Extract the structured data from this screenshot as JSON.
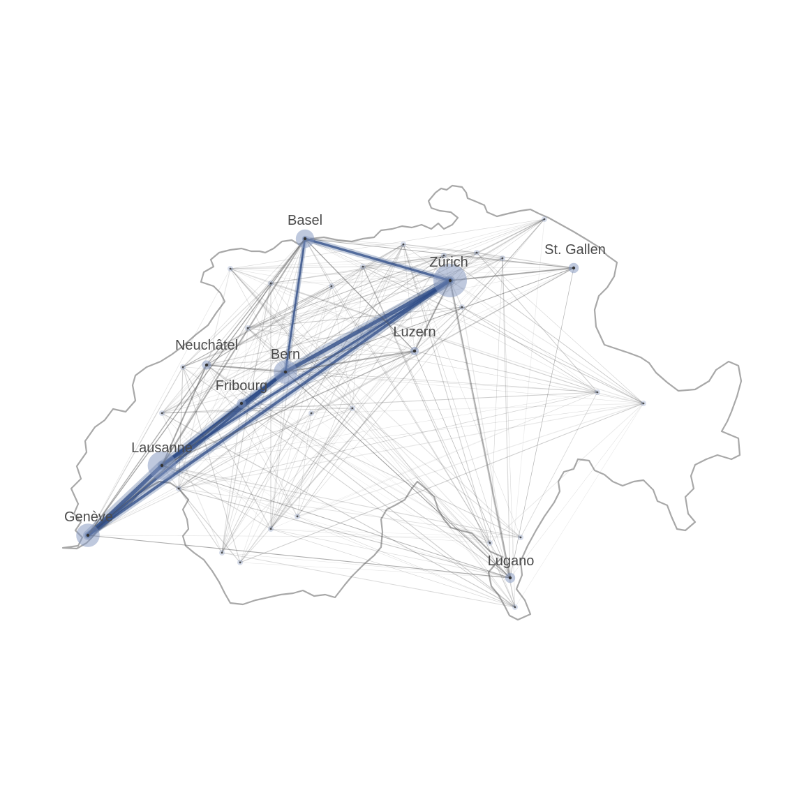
{
  "map": {
    "colors": {
      "background": "#ffffff",
      "border": "#a8a8a8",
      "edge_gray": "#555555",
      "edge_blue": "#2c4a86",
      "node_halo": "#7f93bd",
      "node_core": "#333333",
      "label": "#4a4a4a"
    }
  },
  "cities": [
    {
      "id": "basel",
      "label": "Basel",
      "size": 2.2
    },
    {
      "id": "zurich",
      "label": "Zürich",
      "size": 4.0
    },
    {
      "id": "st_gallen",
      "label": "St. Gallen",
      "size": 1.2
    },
    {
      "id": "luzern",
      "label": "Luzern",
      "size": 1.0
    },
    {
      "id": "neuchatel",
      "label": "Neuchâtel",
      "size": 1.1
    },
    {
      "id": "bern",
      "label": "Bern",
      "size": 2.8
    },
    {
      "id": "fribourg",
      "label": "Fribourg",
      "size": 1.1
    },
    {
      "id": "lausanne",
      "label": "Lausanne",
      "size": 3.4
    },
    {
      "id": "geneve",
      "label": "Genève",
      "size": 2.8
    },
    {
      "id": "lugano",
      "label": "Lugano",
      "size": 1.2
    }
  ],
  "minor_nodes": [
    "winterthur",
    "baden",
    "aarau",
    "olten",
    "solothurn",
    "biel",
    "zug",
    "schaffhausen",
    "la_chaux_de_fonds",
    "yverdon",
    "montreux",
    "sion",
    "martigny",
    "brig",
    "visp",
    "chur",
    "davos",
    "thun",
    "interlaken",
    "bellinzona",
    "locarno",
    "mendrisio",
    "delemont",
    "rapperswil",
    "frauenfeld"
  ],
  "flows": [
    {
      "from": "geneve",
      "to": "lausanne",
      "weight": 10,
      "blue": true
    },
    {
      "from": "lausanne",
      "to": "bern",
      "weight": 9,
      "blue": true
    },
    {
      "from": "bern",
      "to": "zurich",
      "weight": 10,
      "blue": true
    },
    {
      "from": "geneve",
      "to": "zurich",
      "weight": 7,
      "blue": true
    },
    {
      "from": "lausanne",
      "to": "zurich",
      "weight": 6,
      "blue": true
    },
    {
      "from": "basel",
      "to": "zurich",
      "weight": 6,
      "blue": true
    },
    {
      "from": "basel",
      "to": "bern",
      "weight": 5,
      "blue": true
    },
    {
      "from": "geneve",
      "to": "bern",
      "weight": 6,
      "blue": true
    },
    {
      "from": "fribourg",
      "to": "bern",
      "weight": 4,
      "blue": true
    },
    {
      "from": "fribourg",
      "to": "lausanne",
      "weight": 3,
      "blue": true
    },
    {
      "from": "neuchatel",
      "to": "bern",
      "weight": 3,
      "blue": false
    },
    {
      "from": "neuchatel",
      "to": "lausanne",
      "weight": 3,
      "blue": false
    },
    {
      "from": "basel",
      "to": "lausanne",
      "weight": 3,
      "blue": false
    },
    {
      "from": "basel",
      "to": "geneve",
      "weight": 2,
      "blue": false
    },
    {
      "from": "luzern",
      "to": "zurich",
      "weight": 3,
      "blue": false
    },
    {
      "from": "luzern",
      "to": "bern",
      "weight": 3,
      "blue": false
    },
    {
      "from": "st_gallen",
      "to": "zurich",
      "weight": 3,
      "blue": false
    },
    {
      "from": "lugano",
      "to": "zurich",
      "weight": 3,
      "blue": false
    },
    {
      "from": "lugano",
      "to": "bern",
      "weight": 1.5,
      "blue": false
    },
    {
      "from": "lugano",
      "to": "geneve",
      "weight": 1.5,
      "blue": false
    },
    {
      "from": "lugano",
      "to": "lausanne",
      "weight": 1.5,
      "blue": false
    },
    {
      "from": "basel",
      "to": "luzern",
      "weight": 2,
      "blue": false
    },
    {
      "from": "basel",
      "to": "neuchatel",
      "weight": 2,
      "blue": false
    },
    {
      "from": "st_gallen",
      "to": "bern",
      "weight": 1.5,
      "blue": false
    },
    {
      "from": "st_gallen",
      "to": "basel",
      "weight": 1.5,
      "blue": false
    },
    {
      "from": "lausanne",
      "to": "luzern",
      "weight": 2,
      "blue": false
    },
    {
      "from": "geneve",
      "to": "neuchatel",
      "weight": 2,
      "blue": false
    },
    {
      "from": "geneve",
      "to": "fribourg",
      "weight": 2,
      "blue": false
    },
    {
      "from": "st_gallen",
      "to": "lugano",
      "weight": 1,
      "blue": false
    },
    {
      "from": "luzern",
      "to": "lugano",
      "weight": 1,
      "blue": false
    }
  ]
}
